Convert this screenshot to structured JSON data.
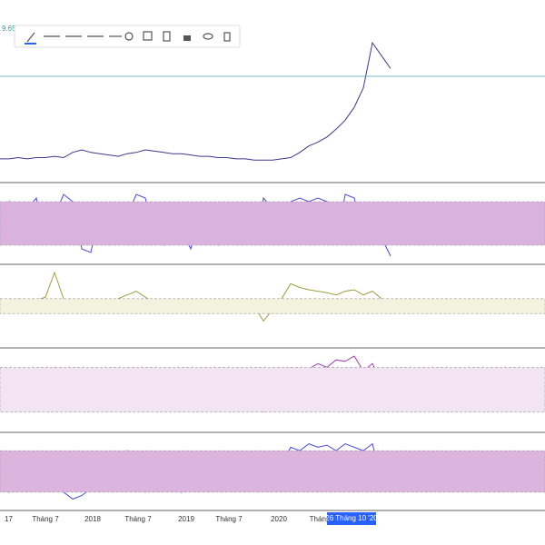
{
  "top_label": "9.65",
  "crosshair_label": "26 Tháng 10 '20",
  "x_labels": [
    "17",
    "Tháng 7",
    "2018",
    "Tháng 7",
    "2019",
    "Tháng 7",
    "2020",
    "Tháng"
  ],
  "panels": [
    {
      "ylim": [
        0,
        100
      ],
      "series": [
        {
          "color": "#3a3a8c",
          "values": [
            5,
            5,
            6,
            5,
            6,
            6,
            7,
            6,
            10,
            12,
            10,
            9,
            8,
            7,
            9,
            10,
            12,
            11,
            10,
            9,
            9,
            8,
            7,
            7,
            6,
            6,
            5,
            5,
            4,
            4,
            4,
            5,
            6,
            10,
            15,
            18,
            22,
            28,
            35,
            45,
            60,
            95,
            85,
            75
          ]
        }
      ]
    },
    {
      "ylim": [
        0,
        100
      ],
      "band": [
        20,
        80
      ],
      "band_color": "#d9b3dd",
      "series": [
        {
          "color": "#4b4bd8",
          "values": [
            40,
            80,
            30,
            70,
            85,
            20,
            60,
            90,
            80,
            15,
            10,
            70,
            20,
            25,
            60,
            90,
            85,
            30,
            20,
            70,
            40,
            15,
            60,
            30,
            20,
            70,
            25,
            60,
            20,
            85,
            70,
            30,
            80,
            85,
            80,
            85,
            80,
            20,
            90,
            85,
            20,
            70,
            30,
            5
          ]
        }
      ]
    },
    {
      "ylim": [
        0,
        100
      ],
      "band": [
        40,
        60
      ],
      "band_color": "#f1f3df",
      "series": [
        {
          "color": "#9aa040",
          "values": [
            50,
            55,
            60,
            52,
            58,
            62,
            95,
            60,
            55,
            50,
            58,
            52,
            48,
            60,
            65,
            70,
            62,
            55,
            50,
            45,
            48,
            55,
            52,
            40,
            45,
            50,
            48,
            55,
            50,
            30,
            45,
            60,
            80,
            75,
            72,
            70,
            68,
            65,
            70,
            72,
            65,
            70,
            60,
            50
          ]
        }
      ]
    },
    {
      "ylim": [
        0,
        100
      ],
      "band": [
        20,
        80
      ],
      "band_color": "#f2e4f3",
      "series": [
        {
          "color": "#a040b0",
          "values": [
            40,
            45,
            55,
            50,
            60,
            55,
            80,
            50,
            35,
            30,
            45,
            40,
            50,
            55,
            65,
            60,
            58,
            50,
            45,
            40,
            35,
            30,
            40,
            35,
            25,
            30,
            28,
            35,
            25,
            20,
            35,
            60,
            80,
            75,
            78,
            85,
            80,
            90,
            88,
            95,
            75,
            85,
            60,
            45
          ]
        }
      ]
    },
    {
      "ylim": [
        0,
        100
      ],
      "band": [
        20,
        80
      ],
      "band_color": "#dcb4de",
      "series": [
        {
          "color": "#4b4bd8",
          "values": [
            60,
            20,
            70,
            40,
            75,
            30,
            80,
            20,
            10,
            15,
            25,
            70,
            30,
            60,
            80,
            40,
            20,
            50,
            30,
            70,
            20,
            50,
            30,
            60,
            25,
            55,
            30,
            60,
            40,
            70,
            30,
            60,
            85,
            80,
            90,
            85,
            88,
            80,
            90,
            85,
            80,
            90,
            40,
            20
          ]
        }
      ]
    }
  ]
}
